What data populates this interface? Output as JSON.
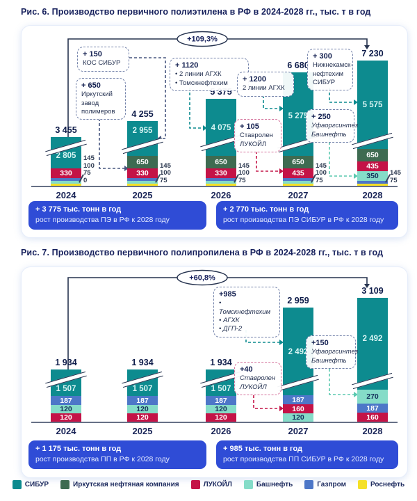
{
  "legend": [
    {
      "label": "СИБУР",
      "color": "#0d8b8f"
    },
    {
      "label": "Иркутская нефтяная компания",
      "color": "#3e6b51"
    },
    {
      "label": "ЛУКОЙЛ",
      "color": "#c41347"
    },
    {
      "label": "Башнефть",
      "color": "#85dcc8"
    },
    {
      "label": "Газпром",
      "color": "#4d77c8"
    },
    {
      "label": "Роснефть",
      "color": "#f5e027"
    }
  ],
  "colors": {
    "navy_text": "#16205c",
    "summary_box": "#2f4cd6",
    "connector_navy": "#46557e",
    "connector_teal": "#0d8b8f",
    "connector_red": "#c41347",
    "connector_mint": "#5ac9af"
  },
  "chart_data": [
    {
      "id": "fig6",
      "type": "bar",
      "stacked": true,
      "axis_break": true,
      "title": "Рис. 6. Производство первичного полиэтилена в РФ в 2024-2028 гг., тыс. т в год",
      "growth_label": "+109,3%",
      "categories": [
        "2024",
        "2025",
        "2026",
        "2027",
        "2028"
      ],
      "totals": [
        3455,
        4255,
        5375,
        6680,
        7230
      ],
      "series": [
        {
          "name": "СИБУР",
          "values": [
            2805,
            2955,
            4075,
            5275,
            5575
          ]
        },
        {
          "name": "Иркутская нефтяная компания",
          "values": [
            0,
            650,
            650,
            650,
            650
          ]
        },
        {
          "name": "ЛУКОЙЛ",
          "values": [
            330,
            330,
            330,
            435,
            435
          ]
        },
        {
          "name": "Башнефть",
          "values": [
            100,
            100,
            100,
            100,
            350
          ]
        },
        {
          "name": "Газпром",
          "values": [
            145,
            145,
            145,
            145,
            145
          ]
        },
        {
          "name": "Роснефть",
          "values": [
            75,
            75,
            75,
            75,
            75
          ]
        }
      ],
      "bars": [
        {
          "year": "2024",
          "total": "3 455",
          "side_labels": [
            "145",
            "100",
            "75",
            "0"
          ],
          "segments": [
            {
              "company": "Роснефть",
              "value": 75
            },
            {
              "company": "Башнефть",
              "value": 100
            },
            {
              "company": "Газпром",
              "value": 145
            },
            {
              "company": "ЛУКОЙЛ",
              "value": 330,
              "label": "330"
            },
            {
              "company": "СИБУР",
              "value": 2805,
              "label": "2 805"
            }
          ]
        },
        {
          "year": "2025",
          "total": "4 255",
          "side_labels": [
            "145",
            "100",
            "75"
          ],
          "segments": [
            {
              "company": "Роснефть",
              "value": 75
            },
            {
              "company": "Башнефть",
              "value": 100
            },
            {
              "company": "Газпром",
              "value": 145
            },
            {
              "company": "ЛУКОЙЛ",
              "value": 330,
              "label": "330"
            },
            {
              "company": "Иркутская нефтяная компания",
              "value": 650,
              "label": "650"
            },
            {
              "company": "СИБУР",
              "value": 2955,
              "label": "2 955"
            }
          ]
        },
        {
          "year": "2026",
          "total": "5 375",
          "side_labels": [
            "145",
            "100",
            "75"
          ],
          "segments": [
            {
              "company": "Роснефть",
              "value": 75
            },
            {
              "company": "Башнефть",
              "value": 100
            },
            {
              "company": "Газпром",
              "value": 145
            },
            {
              "company": "ЛУКОЙЛ",
              "value": 330,
              "label": "330"
            },
            {
              "company": "Иркутская нефтяная компания",
              "value": 650,
              "label": "650"
            },
            {
              "company": "СИБУР",
              "value": 4075,
              "label": "4 075"
            }
          ]
        },
        {
          "year": "2027",
          "total": "6 680",
          "side_labels": [
            "145",
            "100",
            "75"
          ],
          "segments": [
            {
              "company": "Роснефть",
              "value": 75
            },
            {
              "company": "Башнефть",
              "value": 100
            },
            {
              "company": "Газпром",
              "value": 145
            },
            {
              "company": "ЛУКОЙЛ",
              "value": 435,
              "label": "435"
            },
            {
              "company": "Иркутская нефтяная компания",
              "value": 650,
              "label": "650"
            },
            {
              "company": "СИБУР",
              "value": 5275,
              "label": "5 275"
            }
          ]
        },
        {
          "year": "2028",
          "total": "7 230",
          "side_labels": [
            "145",
            "75"
          ],
          "segments": [
            {
              "company": "Роснефть",
              "value": 75
            },
            {
              "company": "Газпром",
              "value": 145
            },
            {
              "company": "Башнефть",
              "value": 350,
              "label": "350"
            },
            {
              "company": "ЛУКОЙЛ",
              "value": 435,
              "label": "435"
            },
            {
              "company": "Иркутская нефтяная компания",
              "value": 650,
              "label": "650"
            },
            {
              "company": "СИБУР",
              "value": 5575,
              "label": "5 575"
            }
          ]
        }
      ],
      "callouts": [
        {
          "id": "c-kos",
          "title": "+ 150",
          "delta": 150,
          "lines": [
            "КОС СИБУР"
          ],
          "theme": "navy"
        },
        {
          "id": "c-irk",
          "title": "+ 650",
          "delta": 650,
          "lines": [
            "Иркутский",
            "завод",
            "полимеров"
          ],
          "theme": "navy"
        },
        {
          "id": "c-aghk26",
          "title": "+ 1120",
          "delta": 1120,
          "lines": [
            "2 линии АГХК",
            "Томскнефтехим"
          ],
          "bullets": true,
          "theme": "navy"
        },
        {
          "id": "c-aghk27",
          "title": "+ 1200",
          "delta": 1200,
          "lines": [
            "2 линии АГХК"
          ],
          "theme": "navy"
        },
        {
          "id": "c-stav",
          "title": "+ 105",
          "delta": 105,
          "lines": [
            "Ставролен",
            "ЛУКОЙЛ"
          ],
          "theme": "red"
        },
        {
          "id": "c-nknh",
          "title": "+ 300",
          "delta": 300,
          "lines": [
            "Нижнекамск-",
            "нефтехим",
            "СИБУР"
          ],
          "theme": "navy"
        },
        {
          "id": "c-ufa",
          "title": "+ 250",
          "delta": 250,
          "lines": [
            "Уфаоргсинтез",
            "Башнефть"
          ],
          "theme": "navy",
          "italic": true
        }
      ],
      "summaries": [
        {
          "value_line": "+ 3 775 тыс. тонн в год",
          "caption": "рост производства ПЭ в РФ к 2028 году"
        },
        {
          "value_line": "+ 2 770 тыс. тонн в год",
          "caption": "рост производства ПЭ СИБУР в РФ к 2028 году"
        }
      ]
    },
    {
      "id": "fig7",
      "type": "bar",
      "stacked": true,
      "axis_break": true,
      "title": "Рис. 7. Производство первичного полипропилена в РФ в 2024-2028 гг., тыс. т в год",
      "growth_label": "+60,8%",
      "categories": [
        "2024",
        "2025",
        "2026",
        "2027",
        "2028"
      ],
      "totals": [
        1934,
        1934,
        1934,
        2959,
        3109
      ],
      "series": [
        {
          "name": "СИБУР",
          "values": [
            1507,
            1507,
            1507,
            2492,
            2492
          ]
        },
        {
          "name": "Газпром",
          "values": [
            187,
            187,
            187,
            187,
            187
          ]
        },
        {
          "name": "Башнефть",
          "values": [
            120,
            120,
            120,
            120,
            270
          ]
        },
        {
          "name": "ЛУКОЙЛ",
          "values": [
            120,
            120,
            120,
            160,
            160
          ]
        }
      ],
      "bars": [
        {
          "year": "2024",
          "total": "1 934",
          "side_labels": [],
          "segments": [
            {
              "company": "ЛУКОЙЛ",
              "value": 120,
              "label": "120"
            },
            {
              "company": "Башнефть",
              "value": 120,
              "label": "120"
            },
            {
              "company": "Газпром",
              "value": 187,
              "label": "187"
            },
            {
              "company": "СИБУР",
              "value": 1507,
              "label": "1 507"
            }
          ]
        },
        {
          "year": "2025",
          "total": "1 934",
          "side_labels": [],
          "segments": [
            {
              "company": "ЛУКОЙЛ",
              "value": 120,
              "label": "120"
            },
            {
              "company": "Башнефть",
              "value": 120,
              "label": "120"
            },
            {
              "company": "Газпром",
              "value": 187,
              "label": "187"
            },
            {
              "company": "СИБУР",
              "value": 1507,
              "label": "1 507"
            }
          ]
        },
        {
          "year": "2026",
          "total": "1 934",
          "side_labels": [],
          "segments": [
            {
              "company": "ЛУКОЙЛ",
              "value": 120,
              "label": "120"
            },
            {
              "company": "Башнефть",
              "value": 120,
              "label": "120"
            },
            {
              "company": "Газпром",
              "value": 187,
              "label": "187"
            },
            {
              "company": "СИБУР",
              "value": 1507,
              "label": "1 507"
            }
          ]
        },
        {
          "year": "2027",
          "total": "2 959",
          "side_labels": [],
          "segments": [
            {
              "company": "Башнефть",
              "value": 120,
              "label": "120"
            },
            {
              "company": "ЛУКОЙЛ",
              "value": 160,
              "label": "160"
            },
            {
              "company": "Газпром",
              "value": 187,
              "label": "187"
            },
            {
              "company": "СИБУР",
              "value": 2492,
              "label": "2 492"
            }
          ]
        },
        {
          "year": "2028",
          "total": "3 109",
          "side_labels": [],
          "segments": [
            {
              "company": "ЛУКОЙЛ",
              "value": 160,
              "label": "160"
            },
            {
              "company": "Газпром",
              "value": 187,
              "label": "187"
            },
            {
              "company": "Башнефть",
              "value": 270,
              "label": "270"
            },
            {
              "company": "СИБУР",
              "value": 2492,
              "label": "2 492"
            }
          ]
        }
      ],
      "callouts": [
        {
          "id": "d-tomsk",
          "title": "+985",
          "delta": 985,
          "lines": [
            "Томскнефтехим",
            "АГХК",
            "ДГП-2"
          ],
          "bullets": true,
          "theme": "navy",
          "italic": true
        },
        {
          "id": "d-stav",
          "title": "+40",
          "delta": 40,
          "lines": [
            "Ставролен",
            "ЛУКОЙЛ"
          ],
          "theme": "red",
          "italic": true
        },
        {
          "id": "d-ufa",
          "title": "+150",
          "delta": 150,
          "lines": [
            "Уфаоргсинтез",
            "Башнефть"
          ],
          "theme": "navy",
          "italic": true
        }
      ],
      "summaries": [
        {
          "value_line": "+ 1 175 тыс. тонн в год",
          "caption": "рост производства ПП в РФ к 2028 году"
        },
        {
          "value_line": "+ 985 тыс. тонн в год",
          "caption": "рост производства ПП СИБУР в РФ к 2028 году"
        }
      ]
    }
  ]
}
